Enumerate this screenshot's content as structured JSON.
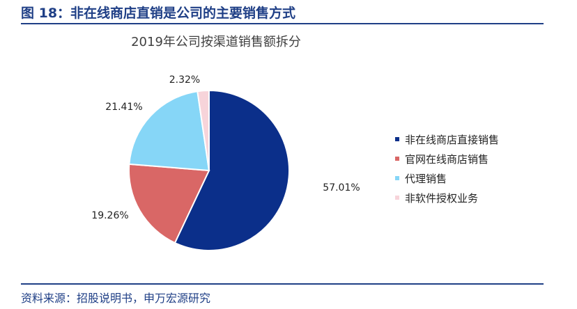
{
  "figure": {
    "title": "图 18：非在线商店直销是公司的主要销售方式",
    "source": "资料来源：招股说明书，申万宏源研究"
  },
  "colors": {
    "header": "#1f3f86"
  },
  "chart_data": {
    "type": "pie",
    "title": "2019年公司按渠道销售额拆分",
    "unit": "%",
    "legend_position": "right",
    "slices": [
      {
        "label": "非在线商店直接销售",
        "value": 57.01,
        "display": "57.01%",
        "color": "#0b2f8a"
      },
      {
        "label": "官网在线商店销售",
        "value": 19.26,
        "display": "19.26%",
        "color": "#d96766"
      },
      {
        "label": "代理销售",
        "value": 21.41,
        "display": "21.41%",
        "color": "#86d6f7"
      },
      {
        "label": "非软件授权业务",
        "value": 2.32,
        "display": "2.32%",
        "color": "#f7d4da"
      }
    ]
  }
}
